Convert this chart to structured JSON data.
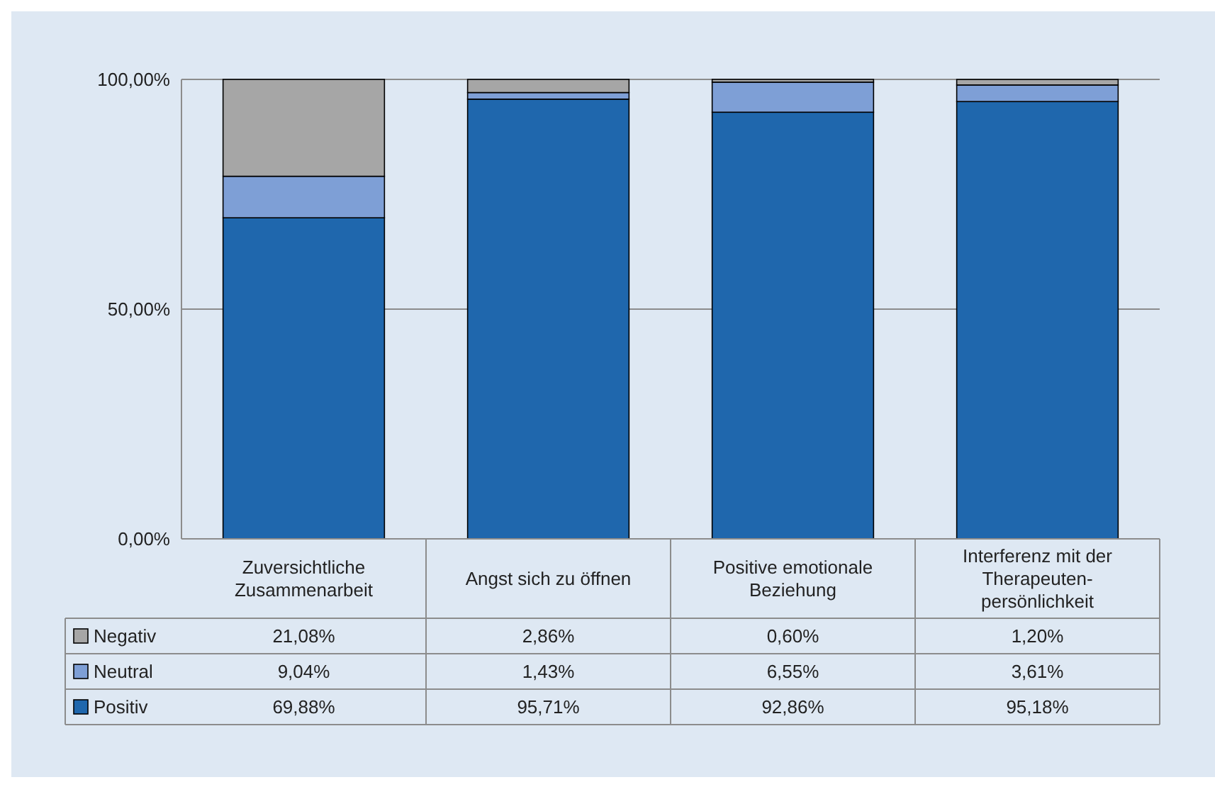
{
  "chart_data": {
    "type": "bar",
    "stacked": true,
    "categories": [
      "Zuversichtliche Zusammenarbeit",
      "Angst sich zu öffnen",
      "Positive emotionale Beziehung",
      "Interferenz mit der Therapeuten-persönlichkeit"
    ],
    "series": [
      {
        "name": "Positiv",
        "color": "#1f67ad",
        "values": [
          69.88,
          95.71,
          92.86,
          95.18
        ],
        "value_labels": [
          "69,88%",
          "95,71%",
          "92,86%",
          "95,18%"
        ]
      },
      {
        "name": "Neutral",
        "color": "#7e9fd6",
        "values": [
          9.04,
          1.43,
          6.55,
          3.61
        ],
        "value_labels": [
          "9,04%",
          "1,43%",
          "6,55%",
          "3,61%"
        ]
      },
      {
        "name": "Negativ",
        "color": "#a6a6a6",
        "values": [
          21.08,
          2.86,
          0.6,
          1.2
        ],
        "value_labels": [
          "21,08%",
          "2,86%",
          "0,60%",
          "1,20%"
        ]
      }
    ],
    "ylim": [
      0,
      100
    ],
    "yticks": [
      {
        "value": 0,
        "label": "0,00%"
      },
      {
        "value": 50,
        "label": "50,00%"
      },
      {
        "value": 100,
        "label": "100,00%"
      }
    ],
    "grid": "y",
    "legend": "bottom left"
  }
}
